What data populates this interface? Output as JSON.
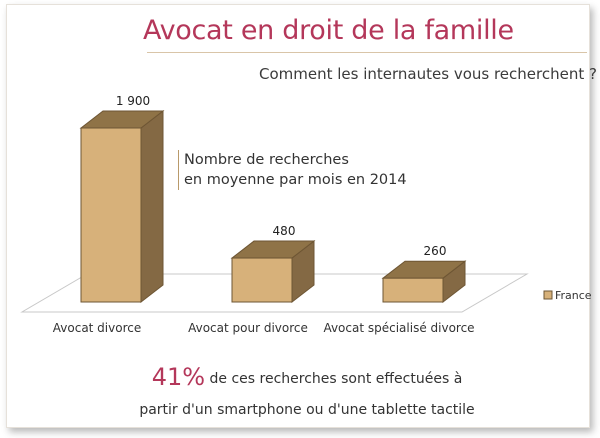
{
  "title": "Avocat en droit de la famille",
  "subtitle": "Comment les internautes vous recherchent ?",
  "note": {
    "line1": "Nombre de recherches",
    "line2": "en moyenne par mois en 2014"
  },
  "footer": {
    "percent": "41%",
    "line1_rest": "de ces recherches sont effectuées à",
    "line2": "partir d'un smartphone ou d'une tablette tactile"
  },
  "colors": {
    "accent": "#b4375a",
    "bar_front": "#d7b17a",
    "bar_top": "#8f7347",
    "bar_side": "#846944",
    "bar_edge": "#6e5634"
  },
  "chart_data": {
    "type": "bar",
    "categories": [
      "Avocat divorce",
      "Avocat pour divorce",
      "Avocat spécialisé divorce"
    ],
    "series": [
      {
        "name": "France",
        "values": [
          1900,
          480,
          260
        ],
        "labels": [
          "1 900",
          "480",
          "260"
        ]
      }
    ],
    "ylim": [
      0,
      1900
    ],
    "legend_position": "right",
    "grid": false,
    "style": "3d"
  }
}
